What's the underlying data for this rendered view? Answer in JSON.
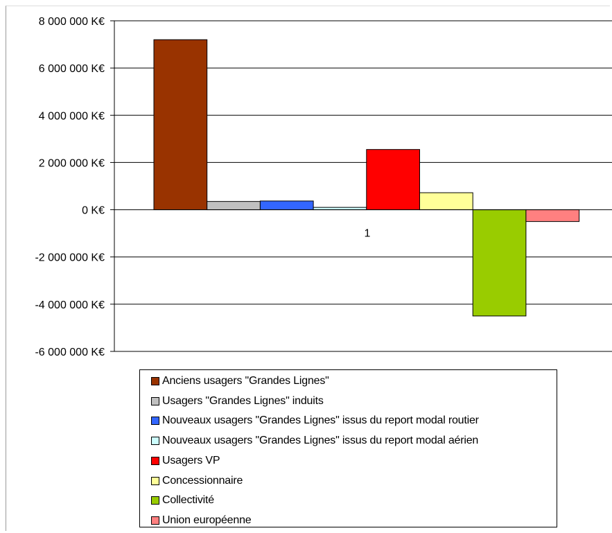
{
  "chart_data": {
    "type": "bar",
    "categories": [
      "1"
    ],
    "series": [
      {
        "name": "Anciens usagers \"Grandes Lignes\"",
        "values": [
          7200000
        ],
        "color": "#993300"
      },
      {
        "name": "Usagers \"Grandes Lignes\" induits",
        "values": [
          350000
        ],
        "color": "#c0c0c0"
      },
      {
        "name": "Nouveaux usagers \"Grandes Lignes\" issus du report modal routier",
        "values": [
          370000
        ],
        "color": "#3366ff"
      },
      {
        "name": "Nouveaux usagers \"Grandes Lignes\" issus du report modal aérien",
        "values": [
          100000
        ],
        "color": "#ccffff"
      },
      {
        "name": "Usagers VP",
        "values": [
          2550000
        ],
        "color": "#ff0000"
      },
      {
        "name": "Concessionnaire",
        "values": [
          720000
        ],
        "color": "#ffff99"
      },
      {
        "name": "Collectivité",
        "values": [
          -4500000
        ],
        "color": "#99cc00"
      },
      {
        "name": "Union européenne",
        "values": [
          -500000
        ],
        "color": "#ff8080"
      }
    ],
    "ylim": [
      -6000000,
      8000000
    ],
    "yticks": [
      8000000,
      6000000,
      4000000,
      2000000,
      0,
      -2000000,
      -4000000,
      -6000000
    ],
    "ytick_labels": [
      "8 000 000 K€",
      "6 000 000 K€",
      "4 000 000 K€",
      "2 000 000 K€",
      "0 K€",
      "-2 000 000 K€",
      "-4 000 000 K€",
      "-6 000 000 K€"
    ],
    "grid": true,
    "legend_position": "bottom",
    "title": "",
    "xlabel": "",
    "ylabel": ""
  }
}
